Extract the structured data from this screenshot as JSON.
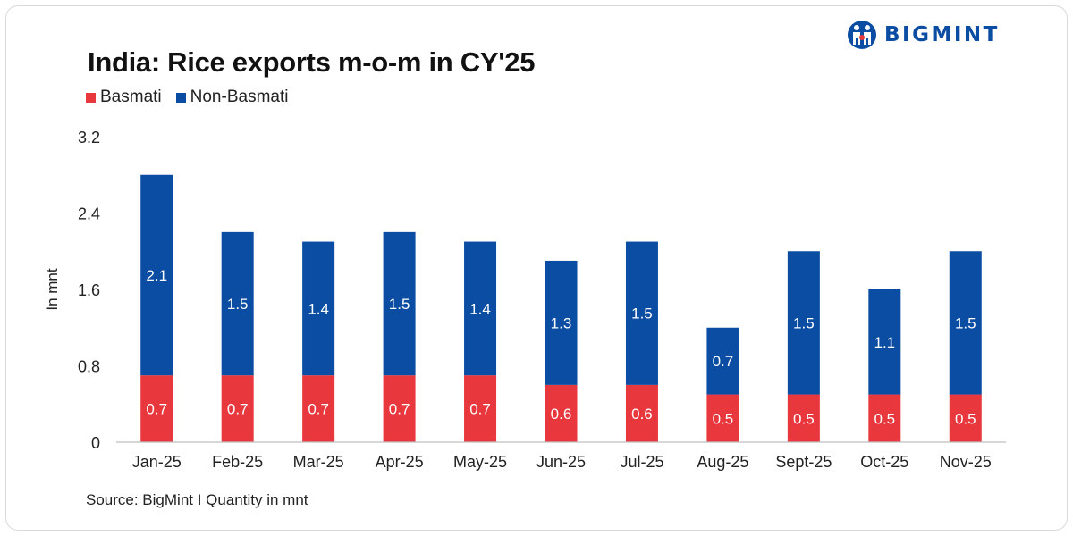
{
  "brand": {
    "name": "BIGMINT",
    "logo_icon": "people-logo-icon",
    "color": "#0b4da2"
  },
  "source": "Source: BigMint I Quantity in mnt",
  "chart_data": {
    "type": "bar",
    "stacked": true,
    "title": "India: Rice exports m-o-m in CY'25",
    "ylabel": "In mnt",
    "xlabel": "",
    "ylim": [
      0,
      3.2
    ],
    "yticks": [
      0,
      0.8,
      1.6,
      2.4,
      3.2
    ],
    "ytick_labels": [
      "0",
      "0.8",
      "1.6",
      "2.4",
      "3.2"
    ],
    "legend_position": "top-left",
    "grid": false,
    "categories": [
      "Jan-25",
      "Feb-25",
      "Mar-25",
      "Apr-25",
      "May-25",
      "Jun-25",
      "Jul-25",
      "Aug-25",
      "Sept-25",
      "Oct-25",
      "Nov-25"
    ],
    "series": [
      {
        "name": "Basmati",
        "color": "#e8383d",
        "values": [
          0.7,
          0.7,
          0.7,
          0.7,
          0.7,
          0.6,
          0.6,
          0.5,
          0.5,
          0.5,
          0.5
        ],
        "labels": [
          "0.7",
          "0.7",
          "0.7",
          "0.7",
          "0.7",
          "0.6",
          "0.6",
          "0.5",
          "0.5",
          "0.5",
          "0.5"
        ]
      },
      {
        "name": "Non-Basmati",
        "color": "#0b4da2",
        "values": [
          2.1,
          1.5,
          1.4,
          1.5,
          1.4,
          1.3,
          1.5,
          0.7,
          1.5,
          1.1,
          1.5
        ],
        "labels": [
          "2.1",
          "1.5",
          "1.4",
          "1.5",
          "1.4",
          "1.3",
          "1.5",
          "0.7",
          "1.5",
          "1.1",
          "1.5"
        ]
      }
    ]
  }
}
